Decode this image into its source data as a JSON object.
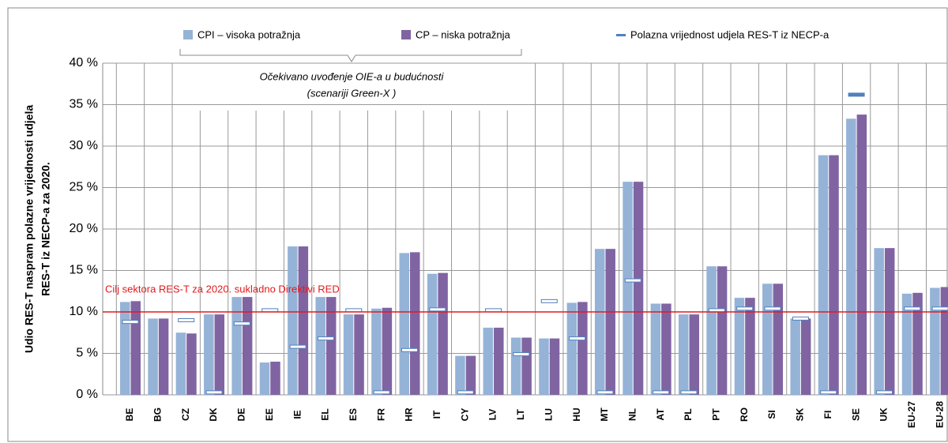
{
  "chart_data": {
    "type": "bar",
    "y_axis_label": [
      "Udio RES-T naspram polazne vrijednosti udjela",
      "RES-T iz NECP-a za 2020."
    ],
    "annotation": [
      "Očekivano uvođenje OIE-a u budućnosti",
      "(scenariji Green-X )"
    ],
    "target_line": {
      "value": 10,
      "label": "Cilj sektora RES-T za 2020. sukladno Direktivi RED",
      "color": "#e31a1c"
    },
    "categories": [
      "BE",
      "BG",
      "CZ",
      "DK",
      "DE",
      "EE",
      "IE",
      "EL",
      "ES",
      "FR",
      "HR",
      "IT",
      "CY",
      "LV",
      "LT",
      "LU",
      "HU",
      "MT",
      "NL",
      "AT",
      "PL",
      "PT",
      "RO",
      "SI",
      "SK",
      "FI",
      "SE",
      "UK",
      "EU-27",
      "EU-28"
    ],
    "series": [
      {
        "name": "CPI – visoka potražnja",
        "color": "#95b3d7",
        "values": [
          11.2,
          9.2,
          7.5,
          9.7,
          11.8,
          3.9,
          17.9,
          11.8,
          9.7,
          10.4,
          17.1,
          14.6,
          4.7,
          8.1,
          6.9,
          6.8,
          11.1,
          17.6,
          25.7,
          11.0,
          9.7,
          15.5,
          11.7,
          13.4,
          9.2,
          28.9,
          33.3,
          17.7,
          12.2,
          12.9
        ]
      },
      {
        "name": "CP – niska potražnja",
        "color": "#8064a2",
        "values": [
          11.3,
          9.2,
          7.4,
          9.7,
          11.8,
          4.0,
          17.9,
          11.8,
          9.7,
          10.5,
          17.2,
          14.7,
          4.7,
          8.1,
          6.9,
          6.8,
          11.2,
          17.6,
          25.7,
          11.0,
          9.7,
          15.5,
          11.7,
          13.4,
          9.2,
          28.9,
          33.8,
          17.7,
          12.3,
          13.0
        ]
      },
      {
        "name": "Polazna vrijednost udjela RES-T iz NECP-a",
        "color": "#4f81bd",
        "marker": "dash",
        "values": [
          8.8,
          null,
          9.0,
          0.3,
          8.6,
          10.2,
          5.8,
          6.8,
          10.2,
          0.3,
          5.4,
          10.3,
          0.3,
          10.2,
          4.9,
          11.3,
          6.8,
          0.3,
          13.8,
          0.3,
          0.3,
          10.2,
          10.4,
          10.4,
          9.2,
          0.3,
          36.2,
          0.3,
          10.4,
          10.4
        ]
      }
    ],
    "ylim": [
      0,
      40
    ],
    "yticks": [
      {
        "value": 0,
        "label": "0 %"
      },
      {
        "value": 5,
        "label": "5 %"
      },
      {
        "value": 10,
        "label": "10 %"
      },
      {
        "value": 15,
        "label": "15 %"
      },
      {
        "value": 20,
        "label": "20 %"
      },
      {
        "value": 25,
        "label": "25 %"
      },
      {
        "value": 30,
        "label": "30 %"
      },
      {
        "value": 35,
        "label": "35 %"
      },
      {
        "value": 40,
        "label": "40 %"
      }
    ],
    "grid": true
  }
}
